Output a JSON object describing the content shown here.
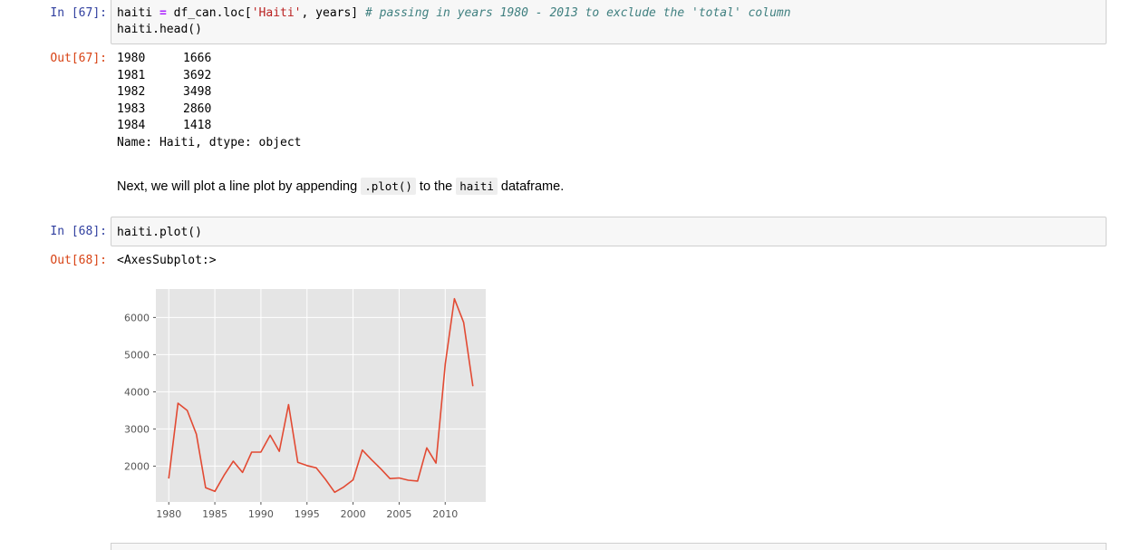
{
  "cells": {
    "c67": {
      "in_prompt": "In [67]:",
      "out_prompt": "Out[67]:",
      "code_line1": {
        "a": "haiti ",
        "eq": "=",
        "b": " df_can.loc[",
        "str": "'Haiti'",
        "c": ", years] ",
        "comment": "# passing in years 1980 - 2013 to exclude the 'total' column"
      },
      "code_line2": "haiti.head()",
      "output_rows": [
        {
          "year": "1980",
          "value": "1666"
        },
        {
          "year": "1981",
          "value": "3692"
        },
        {
          "year": "1982",
          "value": "3498"
        },
        {
          "year": "1983",
          "value": "2860"
        },
        {
          "year": "1984",
          "value": "1418"
        }
      ],
      "output_footer": "Name: Haiti, dtype: object"
    },
    "markdown": {
      "before": "Next, we will plot a line plot by appending ",
      "code1": ".plot()",
      "middle": " to the ",
      "code2": "haiti",
      "after": " dataframe."
    },
    "c68": {
      "in_prompt": "In [68]:",
      "out_prompt": "Out[68]:",
      "code": "haiti.plot()",
      "output_text": "<AxesSubplot:>"
    }
  },
  "chart_data": {
    "type": "line",
    "x": [
      1980,
      1981,
      1982,
      1983,
      1984,
      1985,
      1986,
      1987,
      1988,
      1989,
      1990,
      1991,
      1992,
      1993,
      1994,
      1995,
      1996,
      1997,
      1998,
      1999,
      2000,
      2001,
      2002,
      2003,
      2004,
      2005,
      2006,
      2007,
      2008,
      2009,
      2010,
      2011,
      2012,
      2013
    ],
    "series": [
      {
        "values": [
          1666,
          3692,
          3498,
          2860,
          1418,
          1321,
          1753,
          2132,
          1829,
          2377,
          2379,
          2829,
          2399,
          3655,
          2100,
          2014,
          1955,
          1645,
          1295,
          1439,
          1631,
          2433,
          2174,
          1930,
          1665,
          1682,
          1619,
          1598,
          2491,
          2080,
          4744,
          6503,
          5868,
          4152
        ],
        "color": "#e24a33"
      }
    ],
    "xlim": [
      1978.6,
      2014.4
    ],
    "ylim": [
      1035,
      6765
    ],
    "xticks": [
      "1980",
      "1985",
      "1990",
      "1995",
      "2000",
      "2005",
      "2010"
    ],
    "yticks": [
      "2000",
      "3000",
      "4000",
      "5000",
      "6000"
    ],
    "style": "ggplot",
    "background": "#e5e5e5",
    "grid": true
  }
}
